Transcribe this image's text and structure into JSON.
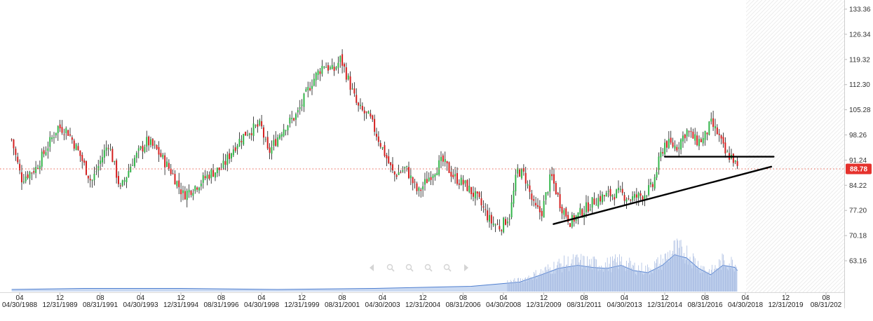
{
  "colors": {
    "up": "#33b54a",
    "down": "#d42020",
    "wick": "#111111",
    "volume_fill": "#c2d3f0",
    "volume_line": "#4f7fd0",
    "trendline": "#000000",
    "price_line": "#e86050",
    "price_badge": "#e5322d",
    "axis_text": "#333333"
  },
  "toolbar": {
    "icons": [
      "scroll-left-icon",
      "zoom-in-icon",
      "zoom-reset-icon",
      "zoom-out-icon",
      "zoom-fit-icon",
      "scroll-right-icon"
    ]
  },
  "chart_data": {
    "type": "candlestick",
    "title": "",
    "xlabel": "",
    "ylabel": "",
    "ylim": [
      59.65,
      133.36
    ],
    "y_ticks": [
      "133.36",
      "126.34",
      "119.32",
      "112.30",
      "105.28",
      "98.26",
      "91.24",
      "84.22",
      "77.20",
      "70.18",
      "63.16"
    ],
    "x_ticks": [
      {
        "top": "04",
        "bottom": "04/30/1988"
      },
      {
        "top": "12",
        "bottom": "12/31/1989"
      },
      {
        "top": "08",
        "bottom": "08/31/1991"
      },
      {
        "top": "04",
        "bottom": "04/30/1993"
      },
      {
        "top": "12",
        "bottom": "12/31/1994"
      },
      {
        "top": "08",
        "bottom": "08/31/1996"
      },
      {
        "top": "04",
        "bottom": "04/30/1998"
      },
      {
        "top": "12",
        "bottom": "12/31/1999"
      },
      {
        "top": "08",
        "bottom": "08/31/2001"
      },
      {
        "top": "04",
        "bottom": "04/30/2003"
      },
      {
        "top": "12",
        "bottom": "12/31/2004"
      },
      {
        "top": "08",
        "bottom": "08/31/2006"
      },
      {
        "top": "04",
        "bottom": "04/30/2008"
      },
      {
        "top": "12",
        "bottom": "12/31/2009"
      },
      {
        "top": "08",
        "bottom": "08/31/2011"
      },
      {
        "top": "04",
        "bottom": "04/30/2013"
      },
      {
        "top": "12",
        "bottom": "12/31/2014"
      },
      {
        "top": "08",
        "bottom": "08/31/2016"
      },
      {
        "top": "04",
        "bottom": "04/30/2018"
      },
      {
        "top": "12",
        "bottom": "12/31/2019"
      },
      {
        "top": "08",
        "bottom": "08/31/202"
      }
    ],
    "last_price": "88.78",
    "price_path": [
      [
        1988.0,
        97.0
      ],
      [
        1988.4,
        86.0
      ],
      [
        1989.0,
        89.0
      ],
      [
        1989.6,
        96.5
      ],
      [
        1989.9,
        100.5
      ],
      [
        1990.3,
        99.5
      ],
      [
        1990.8,
        93.0
      ],
      [
        1991.3,
        85.0
      ],
      [
        1991.7,
        91.5
      ],
      [
        1992.0,
        96.0
      ],
      [
        1992.5,
        83.0
      ],
      [
        1993.0,
        91.0
      ],
      [
        1993.6,
        96.5
      ],
      [
        1994.0,
        94.0
      ],
      [
        1994.6,
        88.0
      ],
      [
        1995.1,
        81.5
      ],
      [
        1995.7,
        84.5
      ],
      [
        1996.2,
        87.5
      ],
      [
        1996.7,
        89.0
      ],
      [
        1997.2,
        95.0
      ],
      [
        1997.7,
        99.0
      ],
      [
        1998.3,
        101.0
      ],
      [
        1998.6,
        93.0
      ],
      [
        1999.2,
        100.0
      ],
      [
        1999.8,
        104.0
      ],
      [
        2000.4,
        113.0
      ],
      [
        2000.9,
        118.0
      ],
      [
        2001.3,
        116.0
      ],
      [
        2001.6,
        119.5
      ],
      [
        2001.9,
        114.0
      ],
      [
        2002.3,
        106.0
      ],
      [
        2002.8,
        103.0
      ],
      [
        2003.3,
        95.0
      ],
      [
        2003.8,
        87.0
      ],
      [
        2004.3,
        89.0
      ],
      [
        2004.8,
        82.0
      ],
      [
        2005.3,
        87.0
      ],
      [
        2005.8,
        91.0
      ],
      [
        2006.3,
        86.5
      ],
      [
        2006.8,
        84.0
      ],
      [
        2007.3,
        80.0
      ],
      [
        2007.8,
        74.0
      ],
      [
        2008.2,
        72.5
      ],
      [
        2008.6,
        76.0
      ],
      [
        2008.9,
        88.5
      ],
      [
        2009.2,
        87.0
      ],
      [
        2009.6,
        78.0
      ],
      [
        2009.9,
        76.5
      ],
      [
        2010.3,
        87.0
      ],
      [
        2010.7,
        78.5
      ],
      [
        2011.1,
        74.0
      ],
      [
        2011.6,
        77.0
      ],
      [
        2012.1,
        80.0
      ],
      [
        2012.6,
        81.5
      ],
      [
        2013.1,
        82.0
      ],
      [
        2013.6,
        80.5
      ],
      [
        2014.1,
        81.5
      ],
      [
        2014.5,
        84.0
      ],
      [
        2014.8,
        92.0
      ],
      [
        2015.0,
        96.0
      ],
      [
        2015.5,
        95.0
      ],
      [
        2015.9,
        99.5
      ],
      [
        2016.3,
        96.5
      ],
      [
        2016.6,
        97.0
      ],
      [
        2016.9,
        101.5
      ],
      [
        2017.2,
        98.5
      ],
      [
        2017.5,
        93.0
      ],
      [
        2017.8,
        92.0
      ],
      [
        2018.0,
        88.78
      ]
    ],
    "volume_path": [
      [
        1988.0,
        0.02
      ],
      [
        1991.0,
        0.03
      ],
      [
        1995.0,
        0.03
      ],
      [
        1999.0,
        0.02
      ],
      [
        2003.0,
        0.03
      ],
      [
        2007.0,
        0.05
      ],
      [
        2009.0,
        0.09
      ],
      [
        2009.9,
        0.16
      ],
      [
        2010.6,
        0.22
      ],
      [
        2011.4,
        0.25
      ],
      [
        2012.0,
        0.23
      ],
      [
        2012.6,
        0.22
      ],
      [
        2013.2,
        0.25
      ],
      [
        2013.7,
        0.2
      ],
      [
        2014.3,
        0.18
      ],
      [
        2014.9,
        0.25
      ],
      [
        2015.4,
        0.35
      ],
      [
        2015.9,
        0.32
      ],
      [
        2016.4,
        0.22
      ],
      [
        2016.9,
        0.16
      ],
      [
        2017.4,
        0.25
      ],
      [
        2017.9,
        0.23
      ],
      [
        2018.0,
        0.2
      ]
    ],
    "trendlines": [
      {
        "name": "support-trendline",
        "x1": 2010.4,
        "y1": 73.4,
        "x2": 2019.4,
        "y2": 89.4
      },
      {
        "name": "resistance-line",
        "x1": 2015.0,
        "y1": 92.2,
        "x2": 2019.5,
        "y2": 92.2
      }
    ],
    "grid": false,
    "legend": "none"
  }
}
